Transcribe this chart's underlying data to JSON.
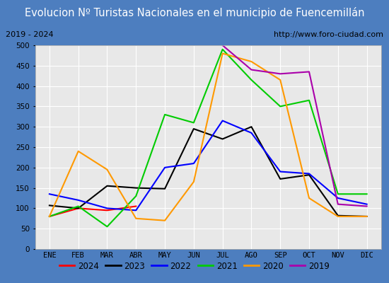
{
  "title": "Evolucion Nº Turistas Nacionales en el municipio de Fuencemillán",
  "subtitle_left": "2019 - 2024",
  "subtitle_right": "http://www.foro-ciudad.com",
  "title_bg_color": "#4d7ebf",
  "title_text_color": "#ffffff",
  "months": [
    "ENE",
    "FEB",
    "MAR",
    "ABR",
    "MAY",
    "JUN",
    "JUL",
    "AGO",
    "SEP",
    "OCT",
    "NOV",
    "DIC"
  ],
  "ylim": [
    0,
    500
  ],
  "yticks": [
    0,
    50,
    100,
    150,
    200,
    250,
    300,
    350,
    400,
    450,
    500
  ],
  "series": {
    "2024": {
      "color": "#ff0000",
      "values": [
        80,
        100,
        95,
        105,
        null,
        null,
        null,
        null,
        null,
        null,
        null,
        null
      ]
    },
    "2023": {
      "color": "#000000",
      "values": [
        107,
        100,
        155,
        150,
        148,
        295,
        270,
        300,
        172,
        182,
        82,
        80
      ]
    },
    "2022": {
      "color": "#0000ff",
      "values": [
        135,
        120,
        100,
        95,
        200,
        210,
        315,
        285,
        190,
        185,
        125,
        110
      ]
    },
    "2021": {
      "color": "#00cc00",
      "values": [
        80,
        105,
        55,
        130,
        330,
        310,
        490,
        415,
        350,
        365,
        135,
        135
      ]
    },
    "2020": {
      "color": "#ff9900",
      "values": [
        80,
        240,
        195,
        75,
        70,
        165,
        480,
        460,
        415,
        125,
        80,
        80
      ]
    },
    "2019": {
      "color": "#aa00aa",
      "values": [
        null,
        null,
        null,
        null,
        null,
        null,
        500,
        440,
        430,
        435,
        110,
        105
      ]
    }
  },
  "legend_order": [
    "2024",
    "2023",
    "2022",
    "2021",
    "2020",
    "2019"
  ],
  "plot_bg_color": "#e8e8e8",
  "grid_color": "#ffffff",
  "border_color": "#4d7ebf",
  "outer_bg": "#dce6f1"
}
